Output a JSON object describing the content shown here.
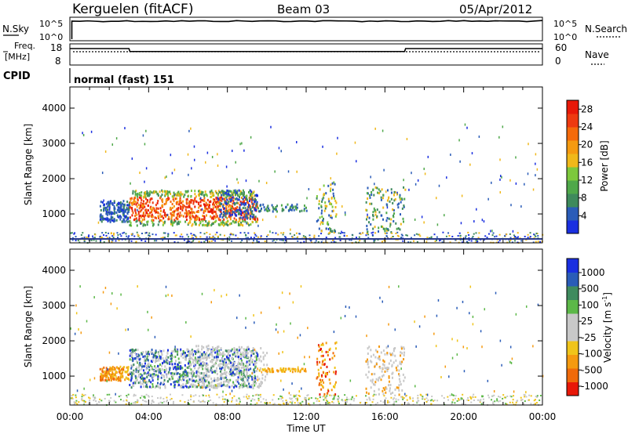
{
  "header": {
    "station": "Kerguelen (fitACF)",
    "beam": "Beam 03",
    "date": "05/Apr/2012"
  },
  "top_panels": {
    "nsky_label": "N.Sky",
    "nsky_ticks": [
      "10^5",
      "10^0"
    ],
    "nsearch_label": "N.Search",
    "nsearch_ticks": [
      "10^5",
      "10^0"
    ],
    "freq_label_line1": "Freq.",
    "freq_label_line2": "[MHz]",
    "freq_ticks": [
      "18",
      "8"
    ],
    "nave_label": "Nave",
    "nave_ticks": [
      "60",
      "0"
    ],
    "cpid_label": "CPID",
    "cpid_value": "normal (fast) 151"
  },
  "colors": {
    "power_scale": [
      "#1a2fe0",
      "#2a5cb8",
      "#3e8a5c",
      "#4fa84a",
      "#7dc83c",
      "#f0b81a",
      "#f59a10",
      "#f56a0a",
      "#ee3a10",
      "#e81808"
    ],
    "velocity_scale": [
      "#1a2fe0",
      "#2a5cb8",
      "#3f8b5e",
      "#5cb848",
      "#c8c8c8",
      "#c8c8c8",
      "#f0c41a",
      "#f59a10",
      "#f06a0a",
      "#e81808"
    ],
    "ground_line": "#2a3a8a"
  },
  "chart_data": [
    {
      "type": "line",
      "name": "nsky-panel",
      "ylabel": "N.Sky",
      "y_scale": "log",
      "ylim": [
        1,
        100000
      ],
      "x": [
        "00:00",
        "24:00"
      ],
      "series": [
        {
          "name": "N.Sky",
          "values": [
            30000,
            30000
          ]
        }
      ]
    },
    {
      "type": "line",
      "name": "freq-nave-panel",
      "ylabel": "Freq. [MHz]",
      "ylim": [
        8,
        18
      ],
      "x_hours": [
        0,
        3.0,
        3.05,
        17.0,
        17.05,
        24
      ],
      "series": [
        {
          "name": "Freq.",
          "values": [
            16,
            16,
            14.5,
            14.5,
            16,
            16
          ]
        }
      ]
    },
    {
      "type": "heatmap",
      "name": "power-panel",
      "xlabel": "Time UT",
      "ylabel": "Slant Range [km]",
      "colorbar_label": "Power [dB]",
      "colorbar_ticks": [
        "4",
        "8",
        "12",
        "16",
        "20",
        "24",
        "28"
      ],
      "colorbar_range": [
        0,
        30
      ],
      "yticks": [
        "1000",
        "2000",
        "3000",
        "4000"
      ],
      "ylim": [
        180,
        4600
      ],
      "xticks": [
        "00:00",
        "04:00",
        "08:00",
        "12:00",
        "16:00",
        "20:00",
        "00:00"
      ],
      "xlim_hours": [
        0,
        24
      ],
      "grid": false
    },
    {
      "type": "heatmap",
      "name": "velocity-panel",
      "xlabel": "Time UT",
      "ylabel": "Slant Range [km]",
      "colorbar_label": "Velocity [m s^-1]",
      "colorbar_ticks": [
        "1000",
        "500",
        "100",
        "25",
        "-25",
        "-100",
        "-500",
        "-1000"
      ],
      "yticks": [
        "1000",
        "2000",
        "3000",
        "4000"
      ],
      "ylim": [
        180,
        4600
      ],
      "xticks": [
        "00:00",
        "04:00",
        "08:00",
        "12:00",
        "16:00",
        "20:00",
        "00:00"
      ],
      "xlim_hours": [
        0,
        24
      ],
      "grid": false
    }
  ],
  "axis_labels": {
    "slant_range": "Slant Range [km]",
    "time": "Time UT",
    "power": "Power [dB]",
    "velocity": "Velocity [m s",
    "velocity_sup": "-1",
    "velocity_end": "]"
  }
}
